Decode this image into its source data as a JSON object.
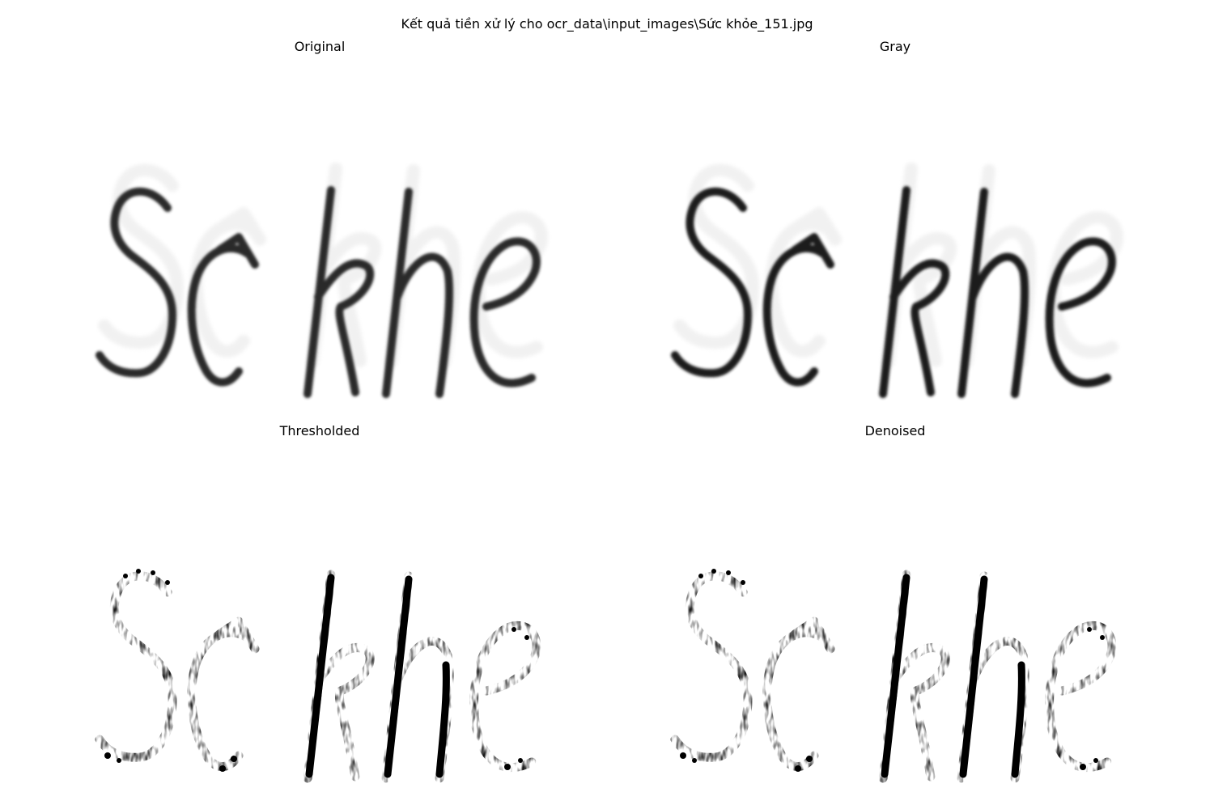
{
  "figure": {
    "suptitle": "Kết quả tiền xử lý cho ocr_data\\input_images\\Sức khỏe_151.jpg"
  },
  "panels": [
    {
      "id": "original",
      "title": "Original"
    },
    {
      "id": "gray",
      "title": "Gray"
    },
    {
      "id": "thresholded",
      "title": "Thresholded"
    },
    {
      "id": "denoised",
      "title": "Denoised"
    }
  ],
  "depicted_text": "Sc khe",
  "colors": {
    "background": "#ffffff",
    "ink_dark": "#000000",
    "ink_soft": "#2a2a2a",
    "haze": "#d8d8d8"
  }
}
